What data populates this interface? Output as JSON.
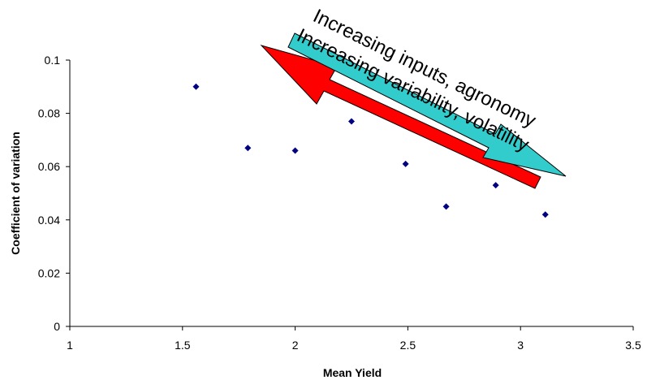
{
  "chart_data": {
    "type": "scatter",
    "xlabel": "Mean Yield",
    "ylabel": "Coefficient of variation",
    "xlim": [
      1,
      3.5
    ],
    "ylim": [
      0,
      0.1
    ],
    "x_ticks": [
      "1",
      "1.5",
      "2",
      "2.5",
      "3",
      "3.5"
    ],
    "y_ticks": [
      "0",
      "0.02",
      "0.04",
      "0.06",
      "0.08",
      "0.1"
    ],
    "points": [
      {
        "x": 1.56,
        "y": 0.09
      },
      {
        "x": 1.79,
        "y": 0.067
      },
      {
        "x": 2.0,
        "y": 0.066
      },
      {
        "x": 2.25,
        "y": 0.077
      },
      {
        "x": 2.49,
        "y": 0.061
      },
      {
        "x": 2.67,
        "y": 0.045
      },
      {
        "x": 2.89,
        "y": 0.053
      },
      {
        "x": 3.11,
        "y": 0.042
      }
    ],
    "marker_color": "#000080",
    "annotations": [
      {
        "text": "Increasing inputs, agronomy",
        "color": "#33CCCC",
        "direction": "toward higher mean yield"
      },
      {
        "text": "Increasing variability, volatility",
        "color": "#FF0000",
        "direction": "toward lower mean yield"
      }
    ]
  }
}
